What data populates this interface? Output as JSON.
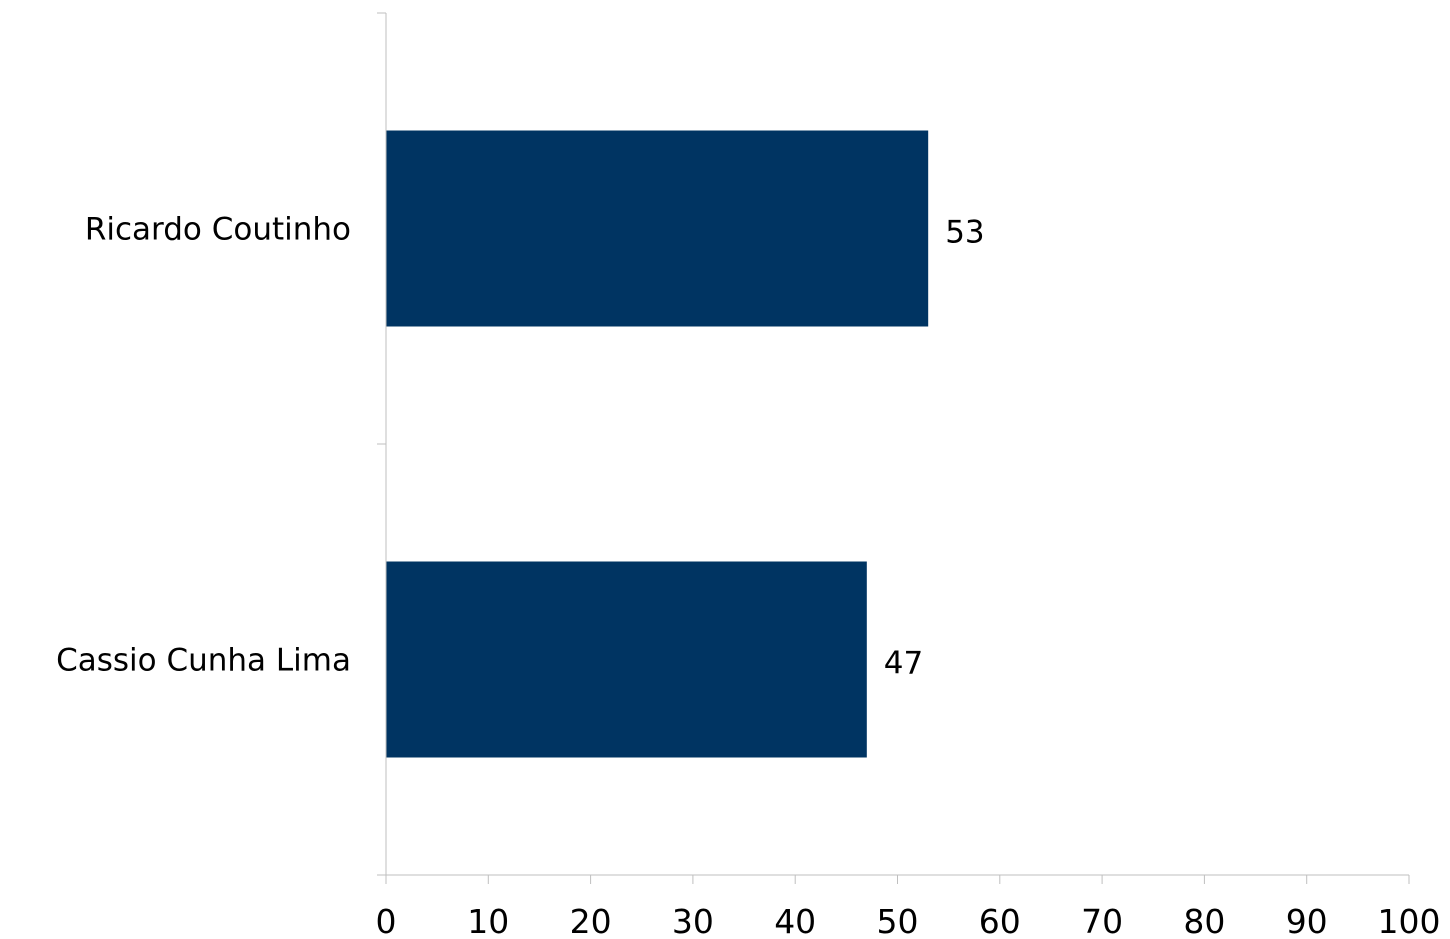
{
  "chart_data": {
    "type": "bar",
    "orientation": "horizontal",
    "categories": [
      "Ricardo Coutinho",
      "Cassio Cunha Lima"
    ],
    "values": [
      53,
      47
    ],
    "data_labels": [
      "53",
      "47"
    ],
    "xlim": [
      0,
      100
    ],
    "x_ticks": [
      0,
      10,
      20,
      30,
      40,
      50,
      60,
      70,
      80,
      90,
      100
    ],
    "title": "",
    "xlabel": "",
    "ylabel": "",
    "grid": false,
    "legend": "none",
    "bar_color": "#003462",
    "axis_color": "#bfbfbf"
  }
}
